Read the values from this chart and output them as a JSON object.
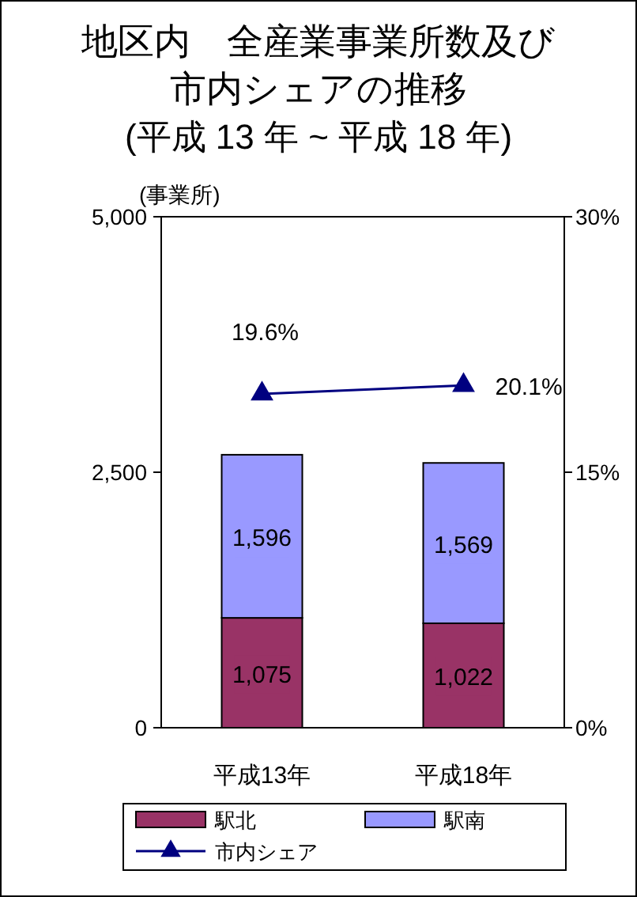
{
  "chart_data": {
    "type": "bar",
    "title": "地区内　全産業事業所数及び市内シェアの推移",
    "subtitle": "(平成 13 年 ~ 平成 18 年)",
    "ylabel": "(事業所)",
    "categories": [
      "平成13年",
      "平成18年"
    ],
    "stacked": true,
    "series": [
      {
        "name": "駅北",
        "color": "#993366",
        "values": [
          1075,
          1022
        ],
        "value_labels": [
          "1,075",
          "1,022"
        ]
      },
      {
        "name": "駅南",
        "color": "#9999ff",
        "values": [
          1596,
          1569
        ],
        "value_labels": [
          "1,596",
          "1,569"
        ]
      },
      {
        "name": "市内シェア",
        "type": "line",
        "axis": "y2",
        "color": "#000080",
        "marker": "triangle",
        "values": [
          19.6,
          20.1
        ],
        "value_labels": [
          "19.6%",
          "20.1%"
        ]
      }
    ],
    "ylim": [
      0,
      5000
    ],
    "yticks": [
      0,
      {
        "value": 2500,
        "label": "2,500"
      },
      {
        "value": 5000,
        "label": "5,000"
      }
    ],
    "y2lim": [
      0,
      30
    ],
    "y2ticks": [
      {
        "value": 0,
        "label": "0%"
      },
      {
        "value": 15,
        "label": "15%"
      },
      {
        "value": 30,
        "label": "30%"
      }
    ],
    "grid": false,
    "legend": "bottom"
  }
}
